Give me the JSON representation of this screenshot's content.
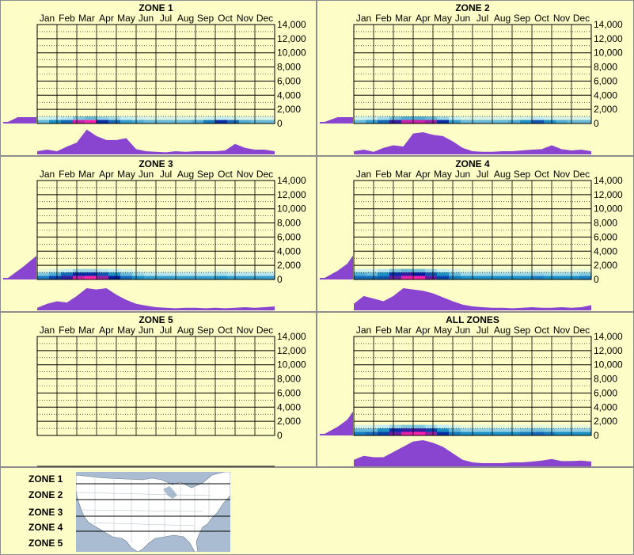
{
  "colors": {
    "background": "#fdfdc8",
    "border": "#8e8e8e",
    "grid": "#000000",
    "profile_fill": "#8a45d0",
    "heat_low": "#c5eef3",
    "heat_mid": "#1c8fc4",
    "heat_high": "#001aa0",
    "heat_peak": "#ff22aa",
    "map_water": "#a9bcd1",
    "map_land": "#ffffff"
  },
  "months": [
    "Jan",
    "Feb",
    "Mar",
    "Apr",
    "May",
    "Jun",
    "Jul",
    "Aug",
    "Sep",
    "Oct",
    "Nov",
    "Dec"
  ],
  "y_ticks": [
    "14,000",
    "12,000",
    "10,000",
    "8,000",
    "6,000",
    "4,000",
    "2,000",
    "0"
  ],
  "chart_data": [
    {
      "type": "heatmap",
      "title": "ZONE 1",
      "ylim": [
        0,
        14000
      ],
      "elevation_profile": [
        0.15,
        0.45
      ],
      "monthly_profile": [
        0.12,
        0.18,
        0.12,
        0.3,
        0.45,
        0.95,
        0.7,
        0.55,
        0.55,
        0.62,
        0.2,
        0.12,
        0.1,
        0.08,
        0.12,
        0.1,
        0.12,
        0.12,
        0.12,
        0.15,
        0.4,
        0.25,
        0.18,
        0.18,
        0.12
      ],
      "heat_rows": [
        {
          "elevation": 250,
          "values": [
            0.3,
            0.45,
            0.55,
            0.95,
            1.0,
            0.7,
            0.55,
            0.4,
            0.35,
            0.3,
            0.3,
            0.3,
            0.3,
            0.35,
            0.5,
            0.7,
            0.55,
            0.35,
            0.3,
            0.3
          ]
        },
        {
          "elevation": 750,
          "values": [
            0.1,
            0.12,
            0.15,
            0.25,
            0.3,
            0.22,
            0.18,
            0.12,
            0.1,
            0.08,
            0.08,
            0.08,
            0.08,
            0.08,
            0.1,
            0.12,
            0.1,
            0.08,
            0.08,
            0.08
          ]
        }
      ]
    },
    {
      "type": "heatmap",
      "title": "ZONE 2",
      "ylim": [
        0,
        14000
      ],
      "elevation_profile": [
        0.15,
        0.55
      ],
      "monthly_profile": [
        0.12,
        0.18,
        0.1,
        0.25,
        0.35,
        0.3,
        0.8,
        0.85,
        0.75,
        0.7,
        0.5,
        0.25,
        0.12,
        0.1,
        0.1,
        0.12,
        0.12,
        0.15,
        0.18,
        0.2,
        0.35,
        0.2,
        0.15,
        0.18,
        0.12
      ],
      "heat_rows": [
        {
          "elevation": 250,
          "values": [
            0.3,
            0.4,
            0.55,
            0.8,
            0.95,
            0.95,
            0.9,
            0.7,
            0.4,
            0.3,
            0.3,
            0.3,
            0.3,
            0.35,
            0.45,
            0.6,
            0.45,
            0.35,
            0.3,
            0.3
          ]
        },
        {
          "elevation": 750,
          "values": [
            0.1,
            0.12,
            0.18,
            0.28,
            0.35,
            0.35,
            0.3,
            0.2,
            0.12,
            0.08,
            0.08,
            0.08,
            0.08,
            0.08,
            0.1,
            0.12,
            0.1,
            0.08,
            0.08,
            0.08
          ]
        }
      ]
    },
    {
      "type": "heatmap",
      "title": "ZONE 3",
      "ylim": [
        0,
        14000
      ],
      "elevation_profile": [
        0.15,
        0.6,
        1.0
      ],
      "monthly_profile": [
        0.1,
        0.25,
        0.35,
        0.3,
        0.55,
        0.85,
        0.8,
        0.85,
        0.6,
        0.4,
        0.25,
        0.18,
        0.12,
        0.1,
        0.08,
        0.1,
        0.1,
        0.08,
        0.1,
        0.08,
        0.1,
        0.12,
        0.1,
        0.12,
        0.15
      ],
      "heat_rows": [
        {
          "elevation": 250,
          "values": [
            0.5,
            0.65,
            0.8,
            0.95,
            1.0,
            0.9,
            0.75,
            0.55,
            0.45,
            0.4,
            0.4,
            0.4,
            0.4,
            0.4,
            0.4,
            0.45,
            0.4,
            0.4,
            0.4,
            0.4
          ]
        },
        {
          "elevation": 750,
          "values": [
            0.25,
            0.35,
            0.55,
            0.7,
            0.7,
            0.6,
            0.45,
            0.3,
            0.2,
            0.15,
            0.15,
            0.15,
            0.15,
            0.15,
            0.15,
            0.18,
            0.15,
            0.15,
            0.15,
            0.15
          ]
        },
        {
          "elevation": 1250,
          "values": [
            0.05,
            0.08,
            0.12,
            0.2,
            0.2,
            0.15,
            0.12,
            0.08,
            0.05,
            0.03,
            0.03,
            0.03,
            0.03,
            0.03,
            0.03,
            0.05,
            0.03,
            0.03,
            0.03,
            0.03
          ]
        }
      ]
    },
    {
      "type": "heatmap",
      "title": "ZONE 4",
      "ylim": [
        0,
        14000
      ],
      "elevation_profile": [
        0.15,
        0.55,
        0.85,
        1.0
      ],
      "monthly_profile": [
        0.25,
        0.55,
        0.45,
        0.35,
        0.55,
        0.85,
        0.8,
        0.75,
        0.65,
        0.5,
        0.35,
        0.22,
        0.15,
        0.12,
        0.1,
        0.1,
        0.08,
        0.1,
        0.12,
        0.1,
        0.1,
        0.12,
        0.1,
        0.12,
        0.2
      ],
      "heat_rows": [
        {
          "elevation": 250,
          "values": [
            0.55,
            0.55,
            0.6,
            0.85,
            0.98,
            1.0,
            0.85,
            0.65,
            0.5,
            0.45,
            0.45,
            0.45,
            0.45,
            0.45,
            0.45,
            0.5,
            0.45,
            0.45,
            0.45,
            0.5
          ]
        },
        {
          "elevation": 750,
          "values": [
            0.35,
            0.3,
            0.45,
            0.7,
            0.8,
            0.75,
            0.6,
            0.45,
            0.3,
            0.2,
            0.2,
            0.2,
            0.2,
            0.2,
            0.2,
            0.22,
            0.2,
            0.2,
            0.2,
            0.25
          ]
        },
        {
          "elevation": 1250,
          "values": [
            0.1,
            0.1,
            0.15,
            0.25,
            0.3,
            0.28,
            0.2,
            0.12,
            0.08,
            0.05,
            0.05,
            0.05,
            0.05,
            0.05,
            0.05,
            0.06,
            0.05,
            0.05,
            0.05,
            0.06
          ]
        }
      ]
    },
    {
      "type": "heatmap",
      "title": "ZONE 5",
      "ylim": [
        0,
        14000
      ],
      "elevation_profile": [],
      "monthly_profile": [],
      "heat_rows": []
    },
    {
      "type": "heatmap",
      "title": "ALL ZONES",
      "ylim": [
        0,
        14000
      ],
      "elevation_profile": [
        0.15,
        0.55,
        0.85,
        1.0
      ],
      "monthly_profile": [
        0.25,
        0.4,
        0.35,
        0.35,
        0.55,
        0.75,
        0.95,
        1.0,
        0.9,
        0.75,
        0.5,
        0.25,
        0.15,
        0.12,
        0.12,
        0.12,
        0.15,
        0.15,
        0.18,
        0.22,
        0.28,
        0.2,
        0.2,
        0.22,
        0.18
      ],
      "heat_rows": [
        {
          "elevation": 250,
          "values": [
            0.5,
            0.55,
            0.65,
            0.85,
            0.98,
            1.0,
            0.9,
            0.7,
            0.5,
            0.45,
            0.45,
            0.45,
            0.45,
            0.45,
            0.5,
            0.55,
            0.5,
            0.45,
            0.45,
            0.45
          ]
        },
        {
          "elevation": 750,
          "values": [
            0.3,
            0.3,
            0.45,
            0.7,
            0.8,
            0.8,
            0.65,
            0.45,
            0.3,
            0.22,
            0.22,
            0.22,
            0.22,
            0.22,
            0.25,
            0.28,
            0.25,
            0.22,
            0.22,
            0.22
          ]
        },
        {
          "elevation": 1250,
          "values": [
            0.08,
            0.08,
            0.12,
            0.2,
            0.25,
            0.25,
            0.18,
            0.12,
            0.08,
            0.05,
            0.05,
            0.05,
            0.05,
            0.05,
            0.05,
            0.06,
            0.05,
            0.05,
            0.05,
            0.05
          ]
        }
      ]
    }
  ],
  "legend": {
    "zones": [
      "ZONE 1",
      "ZONE 2",
      "ZONE 3",
      "ZONE 4",
      "ZONE 5"
    ]
  }
}
